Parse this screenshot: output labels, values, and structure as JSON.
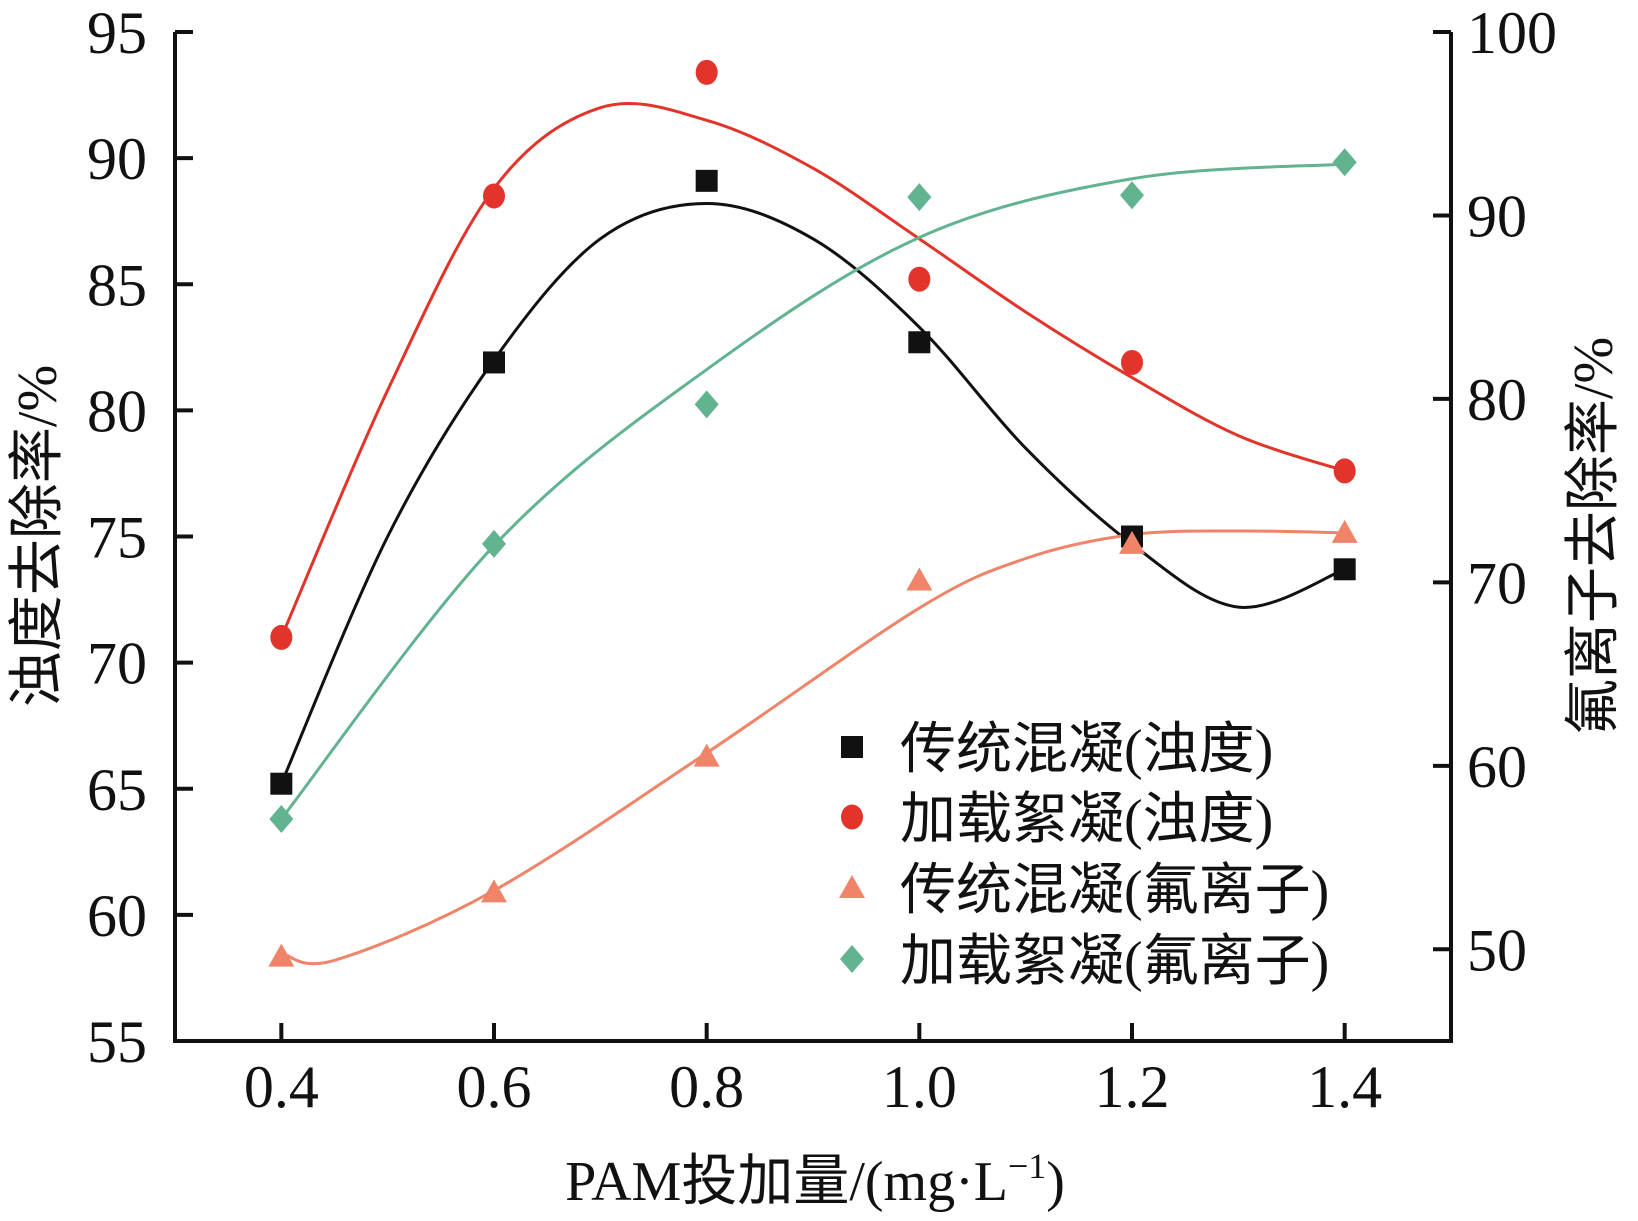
{
  "chart_data": {
    "type": "line",
    "xlabel": "PAM投加量/(mg·L",
    "xlabel_sup": "−1",
    "xlabel_end": ")",
    "ylabel_left": "浊度去除率/%",
    "ylabel_right": "氟离子去除率/%",
    "xlim": [
      0.3,
      1.5
    ],
    "ylim_left": [
      55,
      95
    ],
    "ylim_right": [
      45,
      100
    ],
    "x_ticks": [
      "0.4",
      "0.6",
      "0.8",
      "1.0",
      "1.2",
      "1.4"
    ],
    "x_tick_values": [
      0.4,
      0.6,
      0.8,
      1.0,
      1.2,
      1.4
    ],
    "y_ticks_left": [
      "55",
      "60",
      "65",
      "70",
      "75",
      "80",
      "85",
      "90",
      "95"
    ],
    "y_tick_values_left": [
      55,
      60,
      65,
      70,
      75,
      80,
      85,
      90,
      95
    ],
    "y_ticks_right": [
      "50",
      "60",
      "70",
      "80",
      "90",
      "100"
    ],
    "y_tick_values_right": [
      50,
      60,
      70,
      80,
      90,
      100
    ],
    "legend_position": "bottom-right",
    "x": [
      0.4,
      0.6,
      0.8,
      1.0,
      1.2,
      1.4
    ],
    "series": [
      {
        "name": "传统混凝(浊度)",
        "axis": "left",
        "marker": "square",
        "color": "#111111",
        "values": [
          65.2,
          81.9,
          89.1,
          82.7,
          75.0,
          73.7
        ],
        "fit_x": [
          0.4,
          0.5,
          0.6,
          0.7,
          0.8,
          0.9,
          1.0,
          1.1,
          1.2,
          1.3,
          1.4
        ],
        "fit_y": [
          65.2,
          75.0,
          82.0,
          86.8,
          88.2,
          86.8,
          83.3,
          78.5,
          74.7,
          72.2,
          73.7
        ]
      },
      {
        "name": "加载絮凝(浊度)",
        "axis": "left",
        "marker": "circle",
        "color": "#e3342b",
        "values": [
          71.0,
          88.5,
          93.4,
          85.2,
          81.9,
          77.6
        ],
        "fit_x": [
          0.4,
          0.5,
          0.6,
          0.7,
          0.8,
          0.9,
          1.0,
          1.1,
          1.2,
          1.3,
          1.4
        ],
        "fit_y": [
          71.0,
          80.8,
          88.8,
          92.0,
          91.5,
          89.6,
          86.8,
          83.9,
          81.3,
          79.0,
          77.6
        ]
      },
      {
        "name": "传统混凝(氟离子)",
        "axis": "right",
        "marker": "triangle",
        "color": "#ef8468",
        "values": [
          49.6,
          53.1,
          60.5,
          70.1,
          72.1,
          72.7
        ],
        "fit_x": [
          0.4,
          0.45,
          0.6,
          0.8,
          1.0,
          1.1,
          1.2,
          1.3,
          1.4
        ],
        "fit_y": [
          49.8,
          49.4,
          53.2,
          60.7,
          68.6,
          71.3,
          72.6,
          72.8,
          72.7
        ]
      },
      {
        "name": "加载絮凝(氟离子)",
        "axis": "right",
        "marker": "diamond",
        "color": "#62b390",
        "values": [
          57.1,
          72.1,
          79.7,
          91.0,
          91.1,
          92.9
        ],
        "fit_x": [
          0.4,
          0.6,
          0.8,
          1.0,
          1.2,
          1.4
        ],
        "fit_y": [
          57.1,
          72.0,
          81.6,
          88.8,
          92.0,
          92.8
        ]
      }
    ]
  }
}
